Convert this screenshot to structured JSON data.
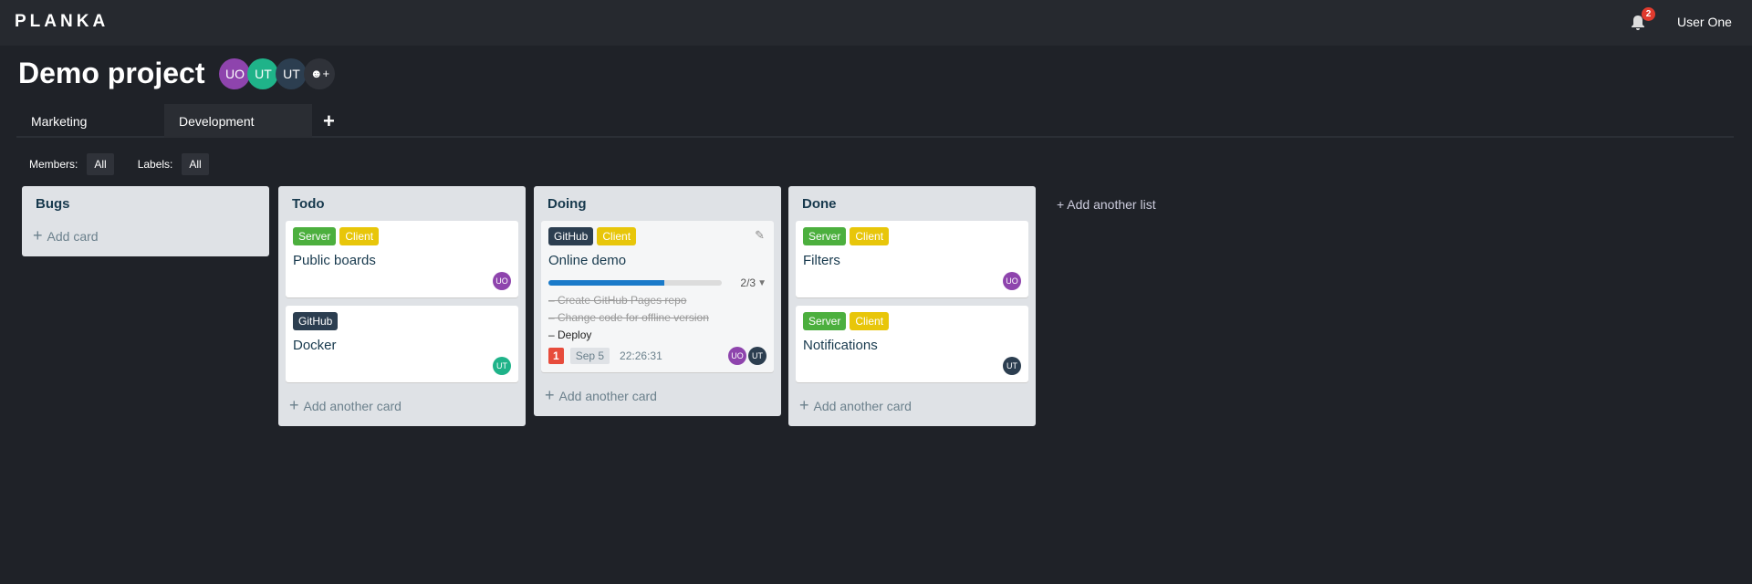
{
  "app": {
    "logo": "PLANKA",
    "notifications": "2",
    "user": "User One"
  },
  "project": {
    "title": "Demo project",
    "members": [
      {
        "initials": "UO",
        "color": "#8e44ad"
      },
      {
        "initials": "UT",
        "color": "#1fb389"
      },
      {
        "initials": "UT",
        "color": "#2c3e50"
      }
    ]
  },
  "tabs": [
    {
      "label": "Marketing"
    },
    {
      "label": "Development"
    }
  ],
  "filters": {
    "members_label": "Members:",
    "members_value": "All",
    "labels_label": "Labels:",
    "labels_value": "All"
  },
  "colors": {
    "server": "#4caf3e",
    "client": "#e8c60a",
    "github": "#2c3e50",
    "uo": "#8e44ad",
    "ut_teal": "#1fb389",
    "ut_dark": "#2c3e50"
  },
  "lists": [
    {
      "name": "Bugs",
      "add": "Add card"
    },
    {
      "name": "Todo",
      "add": "Add another card",
      "cards": [
        {
          "labels": [
            "Server",
            "Client"
          ],
          "name": "Public boards",
          "member": "UO"
        },
        {
          "labels": [
            "GitHub"
          ],
          "name": "Docker",
          "member": "UT"
        }
      ]
    },
    {
      "name": "Doing",
      "add": "Add another card",
      "cards": [
        {
          "labels": [
            "GitHub",
            "Client"
          ],
          "name": "Online demo",
          "progress": "2/3",
          "progress_value": 0.67,
          "tasks": [
            {
              "text": "Create GitHub Pages repo",
              "done": true
            },
            {
              "text": "Change code for offline version",
              "done": true
            },
            {
              "text": "Deploy",
              "done": false
            }
          ],
          "badge": "1",
          "due": "Sep 5",
          "timer": "22:26:31",
          "members": [
            "UO",
            "UT"
          ]
        }
      ]
    },
    {
      "name": "Done",
      "add": "Add another card",
      "cards": [
        {
          "labels": [
            "Server",
            "Client"
          ],
          "name": "Filters",
          "member": "UO"
        },
        {
          "labels": [
            "Server",
            "Client"
          ],
          "name": "Notifications",
          "member": "UT"
        }
      ]
    }
  ],
  "add_list": "Add another list"
}
